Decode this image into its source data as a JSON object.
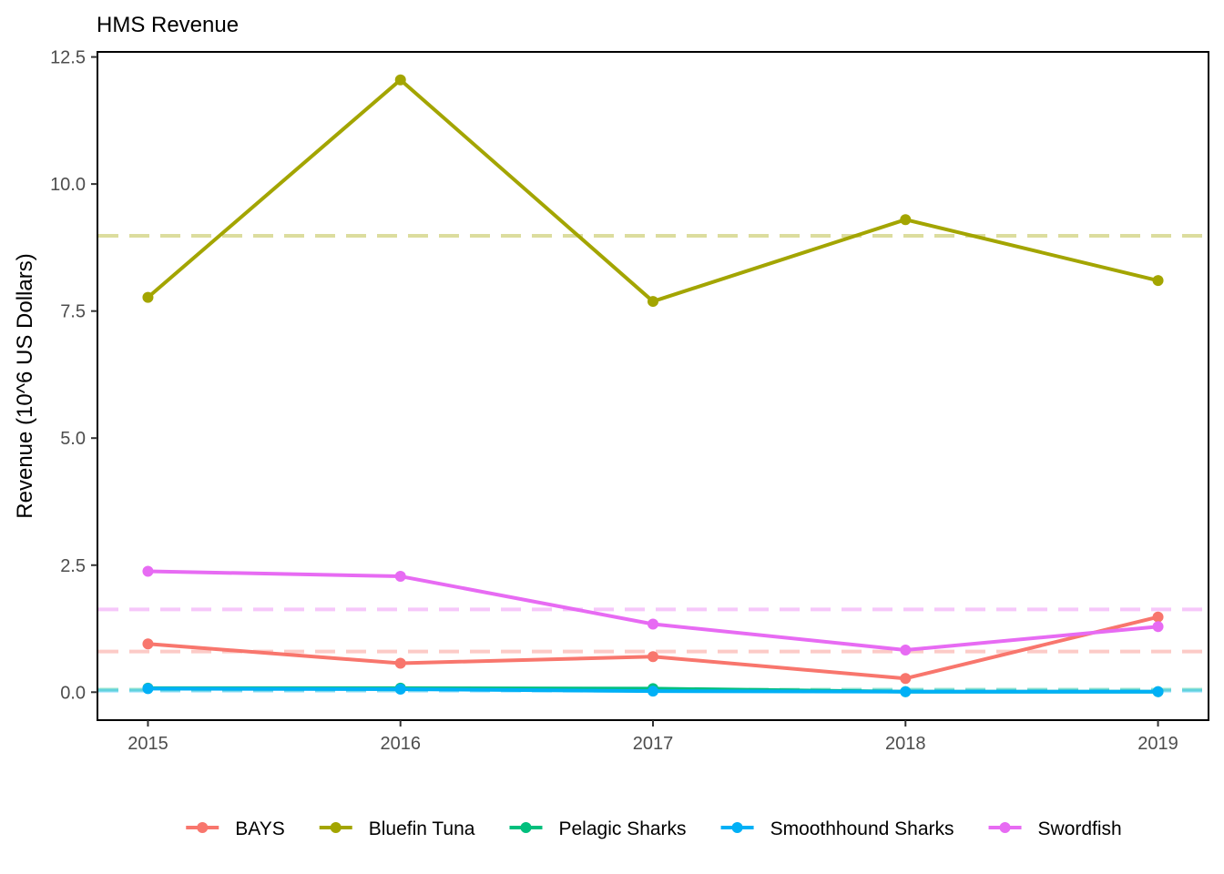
{
  "chart_data": {
    "type": "line",
    "title": "HMS Revenue",
    "xlabel": "",
    "ylabel": "Revenue (10^6 US Dollars)",
    "x": [
      2015,
      2016,
      2017,
      2018,
      2019
    ],
    "x_tick_labels": [
      "2015",
      "2016",
      "2017",
      "2018",
      "2019"
    ],
    "y_ticks": [
      0,
      2.5,
      5,
      7.5,
      10,
      12.5
    ],
    "y_tick_labels": [
      "0.0",
      "2.5",
      "5.0",
      "7.5",
      "10.0",
      "12.5"
    ],
    "xlim": [
      2014.8,
      2019.2
    ],
    "ylim": [
      -0.55,
      12.6
    ],
    "grid": false,
    "legend_position": "bottom",
    "series": [
      {
        "name": "BAYS",
        "color": "#F8766D",
        "values": [
          0.95,
          0.57,
          0.7,
          0.27,
          1.48
        ],
        "mean": 0.8
      },
      {
        "name": "Bluefin Tuna",
        "color": "#A3A500",
        "values": [
          7.77,
          12.05,
          7.69,
          9.3,
          8.1
        ],
        "mean": 8.98
      },
      {
        "name": "Pelagic Sharks",
        "color": "#00BF7D",
        "values": [
          0.08,
          0.08,
          0.07,
          0.01,
          0.01
        ],
        "mean": 0.05
      },
      {
        "name": "Smoothhound Sharks",
        "color": "#00B0F6",
        "values": [
          0.07,
          0.06,
          0.02,
          0.01,
          0.01
        ],
        "mean": 0.03
      },
      {
        "name": "Swordfish",
        "color": "#E76BF3",
        "values": [
          2.38,
          2.28,
          1.34,
          0.83,
          1.29
        ],
        "mean": 1.63
      }
    ]
  }
}
